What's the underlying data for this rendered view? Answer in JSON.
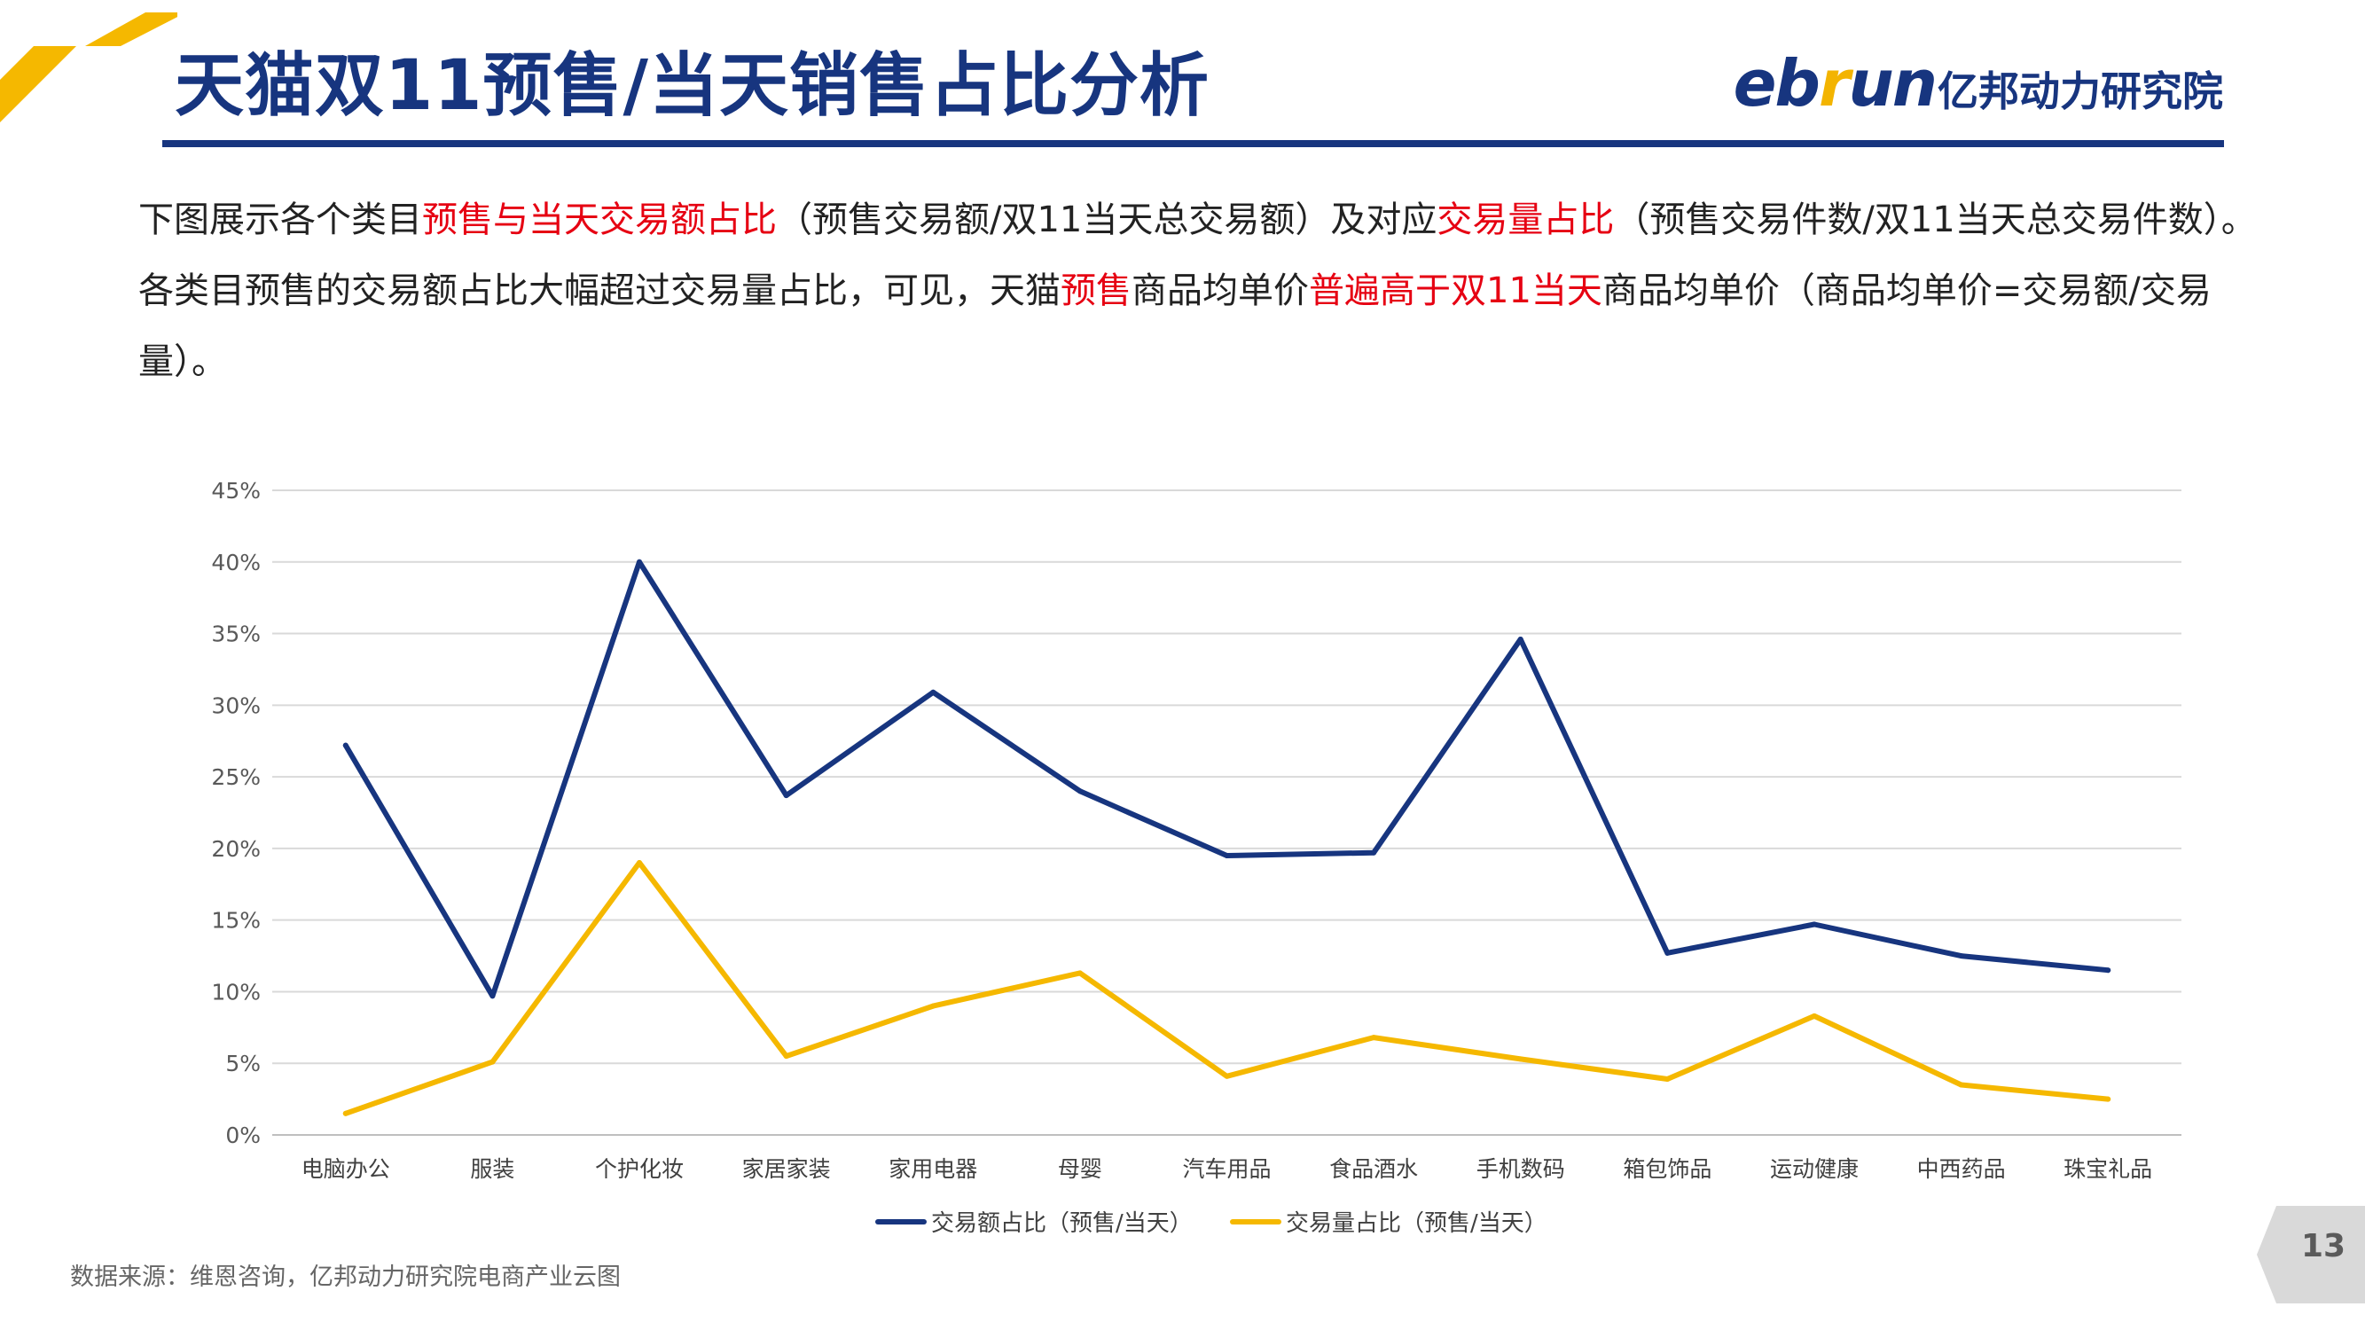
{
  "header": {
    "title": "天猫双11预售/当天销售占比分析",
    "logo_brand_pre": "eb",
    "logo_brand_accent": "r",
    "logo_brand_post": "un",
    "logo_cn": "亿邦动力研究院"
  },
  "description": {
    "p1": [
      {
        "text": "下图展示各个类目",
        "highlight": false
      },
      {
        "text": "预售与当天交易额占比",
        "highlight": true
      },
      {
        "text": "（预售交易额/双11当天总交易额）及对应",
        "highlight": false
      },
      {
        "text": "交易量占比",
        "highlight": true
      },
      {
        "text": "（预售交易件数/双11当天总交易件数）。",
        "highlight": false
      }
    ],
    "p2": [
      {
        "text": "各类目预售的交易额占比大幅超过交易量占比，可见，天猫",
        "highlight": false
      },
      {
        "text": "预售",
        "highlight": true
      },
      {
        "text": "商品均单价",
        "highlight": false
      },
      {
        "text": "普遍高于双11当天",
        "highlight": true
      },
      {
        "text": "商品均单价（商品均单价=交易额/交易量）。",
        "highlight": false
      }
    ]
  },
  "chart_data": {
    "type": "line",
    "categories": [
      "电脑办公",
      "服装",
      "个护化妆",
      "家居家装",
      "家用电器",
      "母婴",
      "汽车用品",
      "食品酒水",
      "手机数码",
      "箱包饰品",
      "运动健康",
      "中西药品",
      "珠宝礼品"
    ],
    "series": [
      {
        "name": "交易额占比（预售/当天）",
        "color": "#17357f",
        "values": [
          27.2,
          9.7,
          40.0,
          23.7,
          30.9,
          24.0,
          19.5,
          19.7,
          34.6,
          12.7,
          14.7,
          12.5,
          11.5
        ]
      },
      {
        "name": "交易量占比（预售/当天）",
        "color": "#f5b800",
        "values": [
          1.5,
          5.1,
          19.0,
          5.5,
          9.0,
          11.3,
          4.1,
          6.8,
          5.3,
          3.9,
          8.3,
          3.5,
          2.5
        ]
      }
    ],
    "ylim": [
      0,
      45
    ],
    "yticks": [
      "0%",
      "5%",
      "10%",
      "15%",
      "20%",
      "25%",
      "30%",
      "35%",
      "40%",
      "45%"
    ],
    "grid": true,
    "legend": "bottom-center",
    "xlabel": "",
    "ylabel": ""
  },
  "footer": {
    "source": "数据来源：维恩咨询，亿邦动力研究院电商产业云图",
    "page_number": "13"
  },
  "colors": {
    "primary": "#17357f",
    "accent": "#f5b800",
    "highlight": "#e60012"
  }
}
